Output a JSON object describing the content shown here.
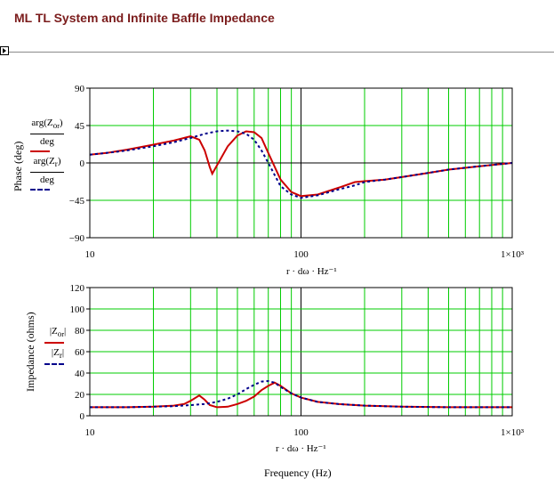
{
  "title": "ML TL System and Infinite Baffle Impedance",
  "region_marker_icon": "region-marker-icon",
  "colors": {
    "title": "#7b1c1c",
    "grid": "#00cc00",
    "series_red": "#cc0000",
    "series_blue": "#00008b"
  },
  "phase_plot": {
    "ylabel": "Phase (deg)",
    "legend": {
      "red_num": "arg(Z",
      "red_sub": "o",
      "red_subsub": "r",
      "blue_num": "arg(Z",
      "blue_sub": "r",
      "den": "deg"
    },
    "x_axis_expr": "r · dω · Hz⁻¹",
    "x_ticks": [
      "10",
      "100",
      "1×10³"
    ],
    "y_ticks": [
      "90",
      "45",
      "0",
      "−45",
      "−90"
    ]
  },
  "impedance_plot": {
    "ylabel": "Impedance (ohms)",
    "legend": {
      "red": "|Z",
      "red_sub": "o",
      "red_subsub": "r",
      "blue": "|Z",
      "blue_sub": "r"
    },
    "x_axis_expr": "r · dω · Hz⁻¹",
    "x_label": "Frequency (Hz)",
    "x_ticks": [
      "10",
      "100",
      "1×10³"
    ],
    "y_ticks": [
      "120",
      "100",
      "80",
      "60",
      "40",
      "20",
      "0"
    ]
  },
  "chart_data": [
    {
      "type": "line",
      "title": "",
      "xlabel": "r · dω · Hz⁻¹",
      "ylabel": "Phase (deg)",
      "x_scale": "log",
      "xlim": [
        10,
        1000
      ],
      "ylim": [
        -90,
        90
      ],
      "grid": true,
      "series": [
        {
          "name": "arg(Z_o_r)/deg",
          "color": "#cc0000",
          "style": "solid",
          "x": [
            10,
            12,
            15,
            20,
            25,
            30,
            33,
            35,
            37,
            38,
            40,
            45,
            50,
            55,
            60,
            65,
            70,
            80,
            90,
            100,
            120,
            150,
            180,
            200,
            250,
            300,
            400,
            500,
            700,
            1000
          ],
          "y": [
            10,
            12,
            16,
            22,
            27,
            32,
            28,
            15,
            -5,
            -13,
            -3,
            20,
            33,
            38,
            37,
            30,
            12,
            -20,
            -35,
            -40,
            -38,
            -30,
            -23,
            -22,
            -20,
            -17,
            -12,
            -8,
            -4,
            0
          ]
        },
        {
          "name": "arg(Z_r)/deg",
          "color": "#00008b",
          "style": "dashed",
          "x": [
            10,
            12,
            15,
            20,
            25,
            30,
            35,
            40,
            45,
            50,
            55,
            60,
            65,
            70,
            80,
            90,
            100,
            120,
            150,
            180,
            200,
            250,
            300,
            400,
            500,
            700,
            1000
          ],
          "y": [
            10,
            12,
            15,
            20,
            25,
            30,
            35,
            38,
            39,
            38,
            35,
            28,
            15,
            0,
            -28,
            -38,
            -42,
            -39,
            -32,
            -27,
            -23,
            -20,
            -17,
            -12,
            -8,
            -4,
            0
          ]
        }
      ]
    },
    {
      "type": "line",
      "title": "",
      "xlabel": "r · dω · Hz⁻¹",
      "ylabel": "Impedance (ohms)",
      "x_scale": "log",
      "xlim": [
        10,
        1000
      ],
      "ylim": [
        0,
        120
      ],
      "grid": true,
      "series": [
        {
          "name": "|Z_o_r|",
          "color": "#cc0000",
          "style": "solid",
          "x": [
            10,
            15,
            20,
            25,
            28,
            30,
            33,
            35,
            37,
            40,
            45,
            50,
            55,
            60,
            65,
            70,
            75,
            80,
            90,
            100,
            120,
            150,
            200,
            300,
            500,
            1000
          ],
          "y": [
            8,
            8,
            8.5,
            9.5,
            11,
            14,
            19,
            15,
            10,
            8,
            8.5,
            11,
            14,
            18,
            24,
            28,
            31,
            28,
            21,
            17,
            13,
            11,
            9.5,
            8.5,
            8,
            8
          ]
        },
        {
          "name": "|Z_r|",
          "color": "#00008b",
          "style": "dashed",
          "x": [
            10,
            15,
            20,
            25,
            30,
            35,
            40,
            45,
            50,
            55,
            60,
            65,
            70,
            75,
            80,
            90,
            100,
            120,
            150,
            200,
            300,
            500,
            1000
          ],
          "y": [
            8,
            8,
            8.5,
            9,
            10,
            11,
            13,
            16,
            20,
            25,
            29,
            32,
            32.5,
            31,
            27,
            21,
            17,
            13,
            11,
            9.5,
            8.5,
            8,
            8
          ]
        }
      ]
    }
  ]
}
